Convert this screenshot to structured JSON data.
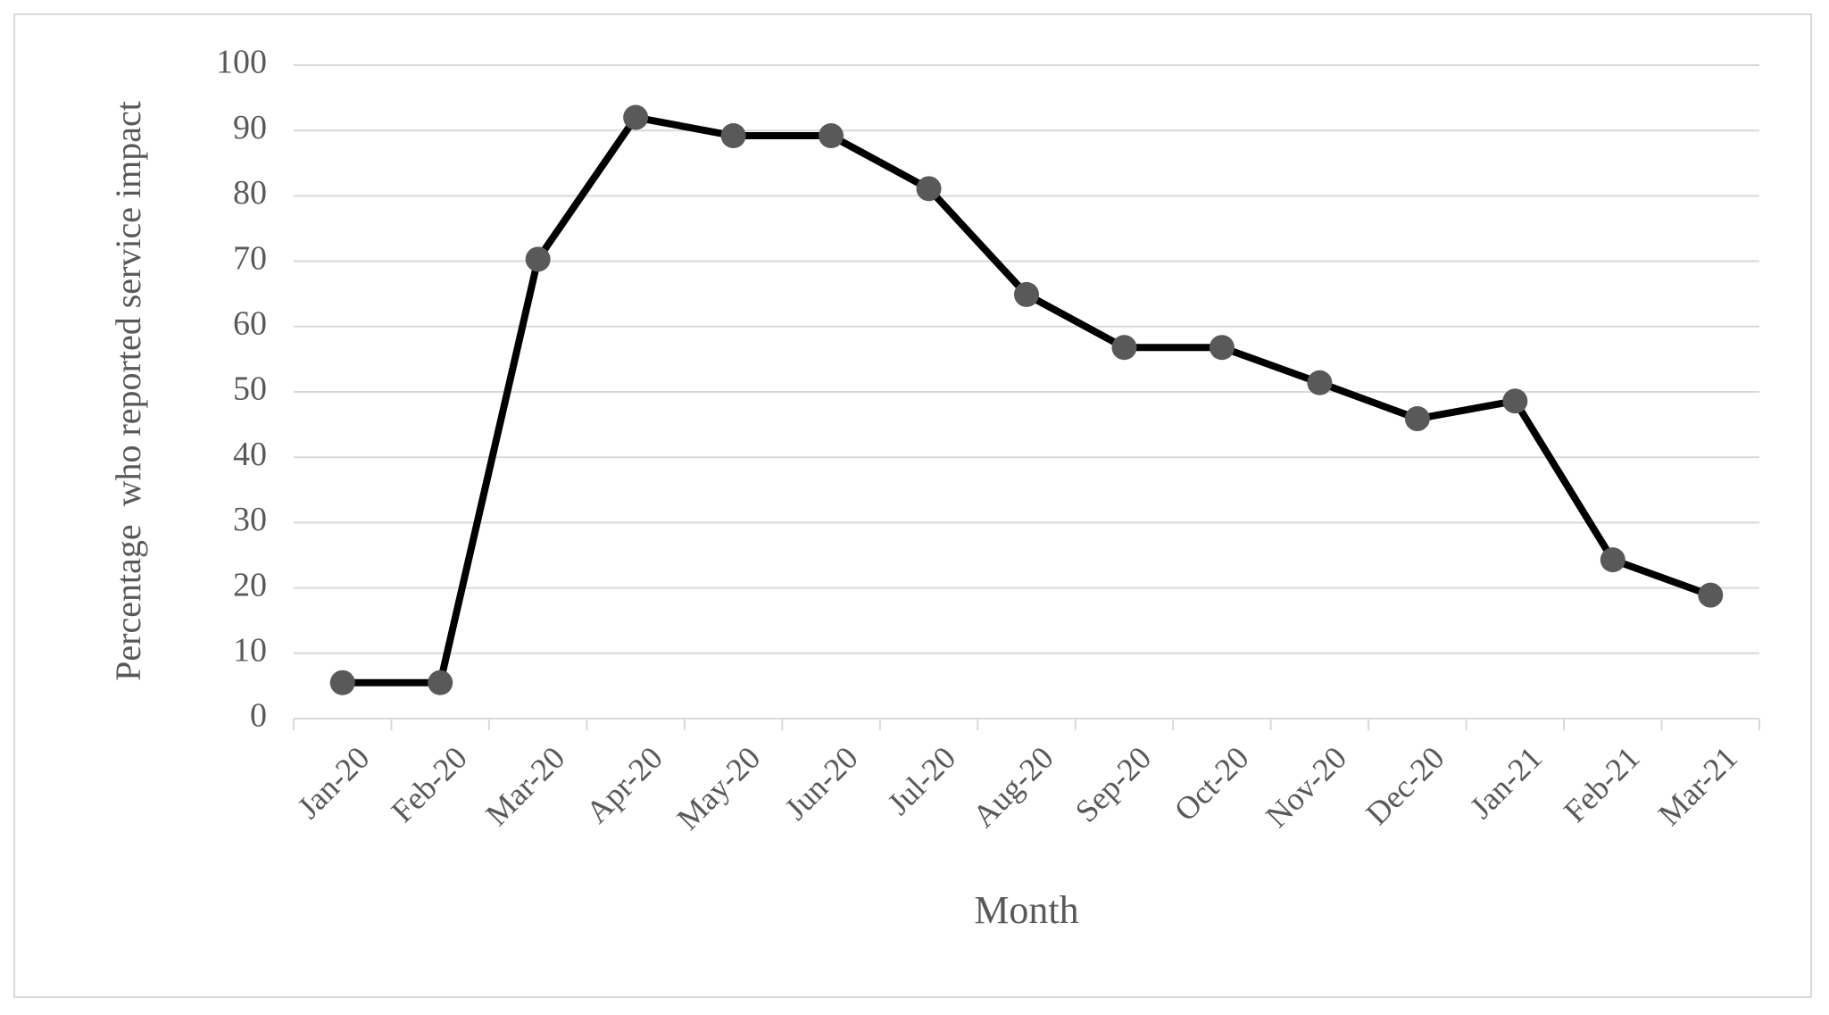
{
  "chart_data": {
    "type": "line",
    "x_label": "Month",
    "y_label": "Percentage  who reported service impact",
    "categories": [
      "Jan-20",
      "Feb-20",
      "Mar-20",
      "Apr-20",
      "May-20",
      "Jun-20",
      "Jul-20",
      "Aug-20",
      "Sep-20",
      "Oct-20",
      "Nov-20",
      "Dec-20",
      "Jan-21",
      "Feb-21",
      "Mar-21"
    ],
    "values": [
      5.5,
      5.5,
      70.3,
      92,
      89.2,
      89.2,
      81.1,
      64.9,
      56.8,
      56.8,
      51.4,
      45.9,
      48.6,
      24.3,
      18.9
    ],
    "color": "#000000",
    "marker_color": "#595959",
    "ylim": [
      0,
      100
    ],
    "yticks": [
      0,
      10,
      20,
      30,
      40,
      50,
      60,
      70,
      80,
      90,
      100
    ],
    "grid": true
  }
}
